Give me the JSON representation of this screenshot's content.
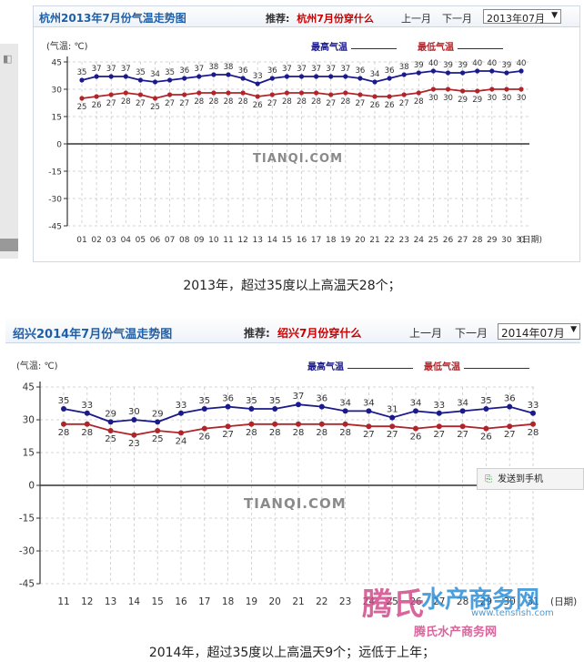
{
  "panel1": {
    "title": "杭州2013年7月份气温走势图",
    "rec_label": "推荐:",
    "rec_link": "杭州7月份穿什么",
    "prev_month": "上一月",
    "next_month": "下一月",
    "month_select": "2013年07月",
    "unit_label": "(气温: ℃)",
    "legend_high": "最高气温",
    "legend_low": "最低气温",
    "watermark": "TIANQI.COM",
    "date_suffix": "(日期)"
  },
  "caption1": "2013年，超过35度以上高温天28个；",
  "panel2": {
    "title": "绍兴2014年7月份气温走势图",
    "rec_label": "推荐:",
    "rec_link": "绍兴7月份穿什么",
    "prev_month": "上一月",
    "next_month": "下一月",
    "month_select": "2014年07月",
    "unit_label": "(气温: ℃)",
    "legend_high": "最高气温",
    "legend_low": "最低气温",
    "watermark": "TIANQI.COM",
    "date_suffix": "(日期)",
    "send_button": "发送到手机"
  },
  "caption2": "2014年，超过35度以上高温天9个；远低于上年；",
  "overlay_watermark": {
    "logo": "腾氏",
    "text": "水产商务网",
    "url": "www.tensfish.com",
    "sub": "腾氏水产商务网"
  },
  "colors": {
    "high": "#1a1a8c",
    "low": "#b0252a",
    "title": "#1f5fa8",
    "grid": "#c8c8c8"
  },
  "chart_data": [
    {
      "type": "line",
      "title": "杭州2013年7月份气温走势图",
      "ylabel": "(气温: ℃)",
      "xlabel": "(日期)",
      "ylim": [
        -45,
        45
      ],
      "yticks": [
        45,
        30,
        15,
        0,
        -15,
        -30,
        -45
      ],
      "categories": [
        "01",
        "02",
        "03",
        "04",
        "05",
        "06",
        "07",
        "08",
        "09",
        "10",
        "11",
        "12",
        "13",
        "14",
        "15",
        "16",
        "17",
        "18",
        "19",
        "20",
        "21",
        "22",
        "23",
        "24",
        "25",
        "26",
        "27",
        "28",
        "29",
        "30",
        "31"
      ],
      "series": [
        {
          "name": "最高气温",
          "values": [
            35,
            37,
            37,
            37,
            35,
            34,
            35,
            36,
            37,
            38,
            38,
            36,
            33,
            36,
            37,
            37,
            37,
            37,
            37,
            36,
            34,
            36,
            38,
            39,
            40,
            39,
            39,
            40,
            40,
            39,
            40
          ]
        },
        {
          "name": "最低气温",
          "values": [
            25,
            26,
            27,
            28,
            27,
            25,
            27,
            27,
            28,
            28,
            28,
            28,
            26,
            27,
            28,
            28,
            28,
            27,
            28,
            27,
            26,
            26,
            27,
            28,
            30,
            30,
            29,
            29,
            30,
            30,
            30
          ]
        }
      ],
      "grid": true
    },
    {
      "type": "line",
      "title": "绍兴2014年7月份气温走势图",
      "ylabel": "(气温: ℃)",
      "xlabel": "(日期)",
      "ylim": [
        -45,
        45
      ],
      "yticks": [
        45,
        30,
        15,
        0,
        -15,
        -30,
        -45
      ],
      "categories": [
        "11",
        "12",
        "13",
        "14",
        "15",
        "16",
        "17",
        "18",
        "19",
        "20",
        "21",
        "22",
        "23",
        "24",
        "25",
        "26",
        "27",
        "28",
        "29",
        "30",
        "31"
      ],
      "series": [
        {
          "name": "最高气温",
          "values": [
            35,
            33,
            29,
            30,
            29,
            33,
            35,
            36,
            35,
            35,
            37,
            36,
            34,
            34,
            31,
            34,
            33,
            34,
            35,
            36,
            33
          ]
        },
        {
          "name": "最低气温",
          "values": [
            28,
            28,
            25,
            23,
            25,
            24,
            26,
            27,
            28,
            28,
            28,
            28,
            28,
            27,
            27,
            26,
            27,
            27,
            26,
            27,
            28
          ]
        }
      ],
      "grid": true
    }
  ]
}
